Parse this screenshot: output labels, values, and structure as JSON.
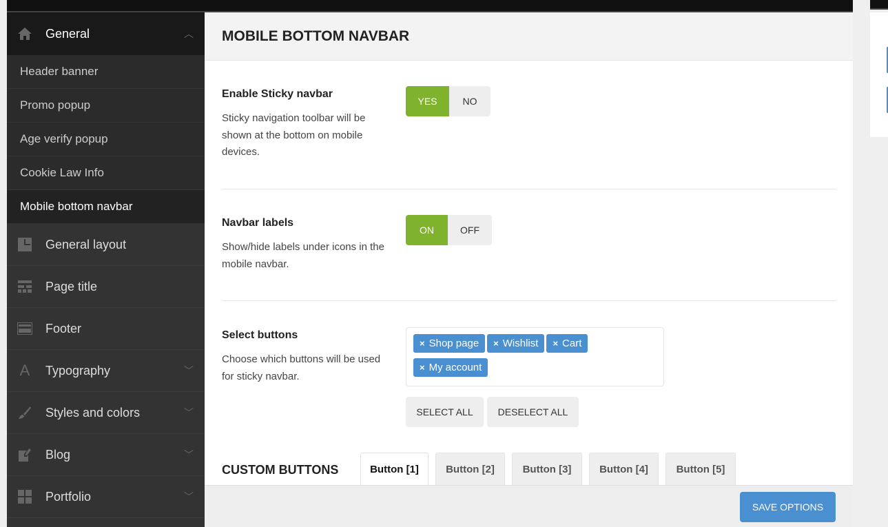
{
  "sidebar": {
    "general": {
      "label": "General",
      "icon": "home-icon"
    },
    "sub_items": [
      {
        "label": "Header banner"
      },
      {
        "label": "Promo popup"
      },
      {
        "label": "Age verify popup"
      },
      {
        "label": "Cookie Law Info"
      },
      {
        "label": "Mobile bottom navbar",
        "active": true
      }
    ],
    "items": [
      {
        "label": "General layout",
        "icon": "layout-icon"
      },
      {
        "label": "Page title",
        "icon": "page-title-icon"
      },
      {
        "label": "Footer",
        "icon": "footer-icon"
      },
      {
        "label": "Typography",
        "icon": "font-icon"
      },
      {
        "label": "Styles and colors",
        "icon": "brush-icon"
      },
      {
        "label": "Blog",
        "icon": "edit-icon"
      },
      {
        "label": "Portfolio",
        "icon": "grid-icon"
      }
    ]
  },
  "main": {
    "title": "MOBILE BOTTOM NAVBAR",
    "sticky": {
      "label": "Enable Sticky navbar",
      "desc": "Sticky navigation toolbar will be shown at the bottom on mobile devices.",
      "yes": "YES",
      "no": "NO",
      "value": "YES"
    },
    "labels": {
      "label": "Navbar labels",
      "desc": "Show/hide labels under icons in the mobile navbar.",
      "on": "ON",
      "off": "OFF",
      "value": "ON"
    },
    "buttons": {
      "label": "Select buttons",
      "desc": "Choose which buttons will be used for sticky navbar.",
      "tags": [
        "Shop page",
        "Wishlist",
        "Cart",
        "My account"
      ],
      "remove": "×",
      "select_all": "SELECT ALL",
      "deselect_all": "DESELECT ALL"
    },
    "custom": {
      "title": "CUSTOM BUTTONS",
      "tabs": [
        "Button [1]",
        "Button [2]",
        "Button [3]",
        "Button [4]",
        "Button [5]"
      ],
      "active_tab": 0
    },
    "save": "SAVE OPTIONS"
  },
  "colors": {
    "accent_green": "#7fb22d",
    "accent_blue": "#4a90d0"
  }
}
